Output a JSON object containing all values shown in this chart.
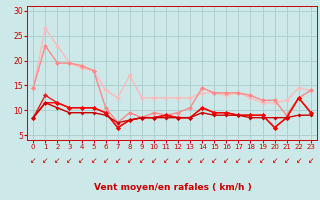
{
  "bg_color": "#cce8e8",
  "grid_color": "#aacccc",
  "xlabel": "Vent moyen/en rafales ( km/h )",
  "xlim": [
    -0.5,
    23.5
  ],
  "ylim": [
    4,
    31
  ],
  "yticks": [
    5,
    10,
    15,
    20,
    25,
    30
  ],
  "xticks": [
    0,
    1,
    2,
    3,
    4,
    5,
    6,
    7,
    8,
    9,
    10,
    11,
    12,
    13,
    14,
    15,
    16,
    17,
    18,
    19,
    20,
    21,
    22,
    23
  ],
  "lines": [
    {
      "x": [
        0,
        1,
        2,
        3,
        4,
        5,
        6,
        7,
        8,
        9,
        10,
        11,
        12,
        13,
        14,
        15,
        16,
        17,
        18,
        19,
        20,
        21,
        22,
        23
      ],
      "y": [
        14.5,
        26.5,
        23.0,
        19.5,
        18.5,
        18.0,
        14.0,
        12.5,
        17.0,
        12.5,
        12.5,
        12.5,
        12.5,
        12.5,
        13.5,
        13.5,
        13.0,
        13.5,
        12.5,
        11.5,
        11.5,
        12.0,
        14.5,
        14.0
      ],
      "color": "#ffbbbb",
      "lw": 1.0,
      "ms": 2.5,
      "zorder": 2
    },
    {
      "x": [
        0,
        1,
        2,
        3,
        4,
        5,
        6,
        7,
        8,
        9,
        10,
        11,
        12,
        13,
        14,
        15,
        16,
        17,
        18,
        19,
        20,
        21,
        22,
        23
      ],
      "y": [
        14.5,
        23.0,
        19.5,
        19.5,
        19.0,
        18.0,
        10.5,
        7.5,
        9.5,
        8.5,
        9.5,
        9.0,
        9.5,
        10.5,
        14.5,
        13.5,
        13.5,
        13.5,
        13.0,
        12.0,
        12.0,
        9.0,
        12.5,
        14.0
      ],
      "color": "#ff8888",
      "lw": 1.0,
      "ms": 2.5,
      "zorder": 3
    },
    {
      "x": [
        0,
        1,
        2,
        3,
        4,
        5,
        6,
        7,
        8,
        9,
        10,
        11,
        12,
        13,
        14,
        15,
        16,
        17,
        18,
        19,
        20,
        21,
        22,
        23
      ],
      "y": [
        8.5,
        13.0,
        11.5,
        10.5,
        10.5,
        10.5,
        9.5,
        6.5,
        8.0,
        8.5,
        8.5,
        9.0,
        8.5,
        8.5,
        10.5,
        9.5,
        9.5,
        9.0,
        9.0,
        9.0,
        6.5,
        8.5,
        12.5,
        9.5
      ],
      "color": "#dd2222",
      "lw": 1.0,
      "ms": 2.5,
      "zorder": 4
    },
    {
      "x": [
        0,
        1,
        2,
        3,
        4,
        5,
        6,
        7,
        8,
        9,
        10,
        11,
        12,
        13,
        14,
        15,
        16,
        17,
        18,
        19,
        20,
        21,
        22,
        23
      ],
      "y": [
        8.5,
        11.5,
        11.5,
        10.5,
        10.5,
        10.5,
        9.5,
        6.5,
        8.0,
        8.5,
        8.5,
        9.0,
        8.5,
        8.5,
        10.5,
        9.5,
        9.5,
        9.0,
        9.0,
        9.0,
        6.5,
        8.5,
        12.5,
        9.5
      ],
      "color": "#ff0000",
      "lw": 1.0,
      "ms": 2.5,
      "zorder": 5
    },
    {
      "x": [
        0,
        1,
        2,
        3,
        4,
        5,
        6,
        7,
        8,
        9,
        10,
        11,
        12,
        13,
        14,
        15,
        16,
        17,
        18,
        19,
        20,
        21,
        22,
        23
      ],
      "y": [
        8.5,
        11.5,
        10.5,
        9.5,
        9.5,
        9.5,
        9.0,
        7.5,
        8.0,
        8.5,
        8.5,
        8.5,
        8.5,
        8.5,
        9.5,
        9.0,
        9.0,
        9.0,
        8.5,
        8.5,
        8.5,
        8.5,
        9.0,
        9.0
      ],
      "color": "#cc0000",
      "lw": 1.0,
      "ms": 2.0,
      "zorder": 6
    }
  ],
  "arrow_chars": [
    "↘",
    "↘",
    "↙",
    "↙",
    "↙",
    "↙",
    "↙",
    "↘",
    "↙",
    "↙",
    "↙",
    "↙",
    "↙",
    "↙",
    "↙",
    "↙",
    "↙",
    "↙",
    "↙",
    "↙",
    "↙",
    "↙",
    "↙",
    "↙"
  ],
  "arrow_color": "#cc0000",
  "xlabel_color": "#cc0000",
  "tick_color": "#cc0000"
}
